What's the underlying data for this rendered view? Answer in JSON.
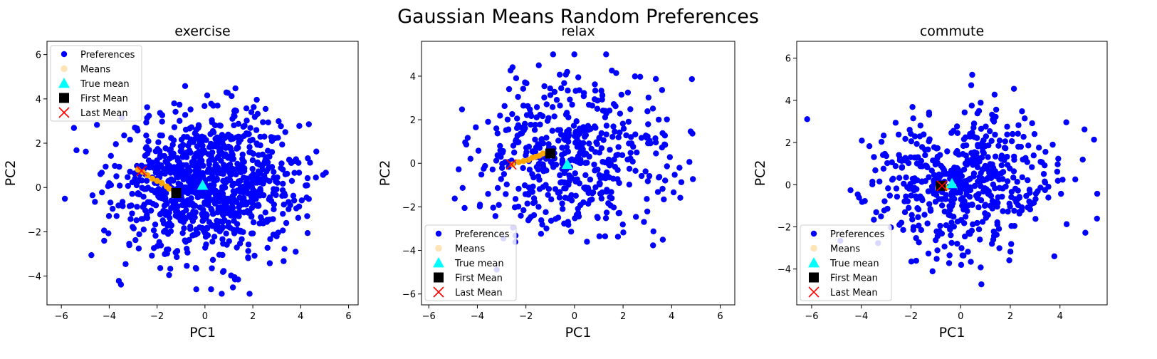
{
  "figure": {
    "title": "Gaussian Means Random Preferences"
  },
  "legend_labels": [
    "Preferences",
    "Means",
    "True mean",
    "First Mean",
    "Last Mean"
  ],
  "colors": {
    "preferences": "#0000ff",
    "means": "#ffa500",
    "means_legend": "#ffe4b5",
    "true_mean": "#00ffff",
    "first_mean": "#000000",
    "last_mean": "#ff0000"
  },
  "chart_data": [
    {
      "type": "scatter",
      "title": "exercise",
      "xlabel": "PC1",
      "ylabel": "PC2",
      "xlim": [
        -6.6,
        6.4
      ],
      "ylim": [
        -5.3,
        6.6
      ],
      "xticks": [
        -6,
        -4,
        -2,
        0,
        2,
        4,
        6
      ],
      "yticks": [
        -4,
        -2,
        0,
        2,
        4,
        6
      ],
      "legend_position": "upper-left",
      "grid": false,
      "preferences": {
        "n": 1000,
        "center": [
          0.2,
          0.2
        ],
        "spread": [
          1.9,
          1.6
        ],
        "xrange": [
          -6.1,
          6.0
        ],
        "yrange": [
          -4.8,
          6.1
        ]
      },
      "means_path": [
        [
          -2.8,
          0.8
        ],
        [
          -2.6,
          0.7
        ],
        [
          -2.4,
          0.55
        ],
        [
          -2.2,
          0.4
        ],
        [
          -2.0,
          0.3
        ],
        [
          -1.8,
          0.2
        ],
        [
          -1.6,
          0.05
        ],
        [
          -1.5,
          -0.05
        ]
      ],
      "true_mean": [
        -0.1,
        0.1
      ],
      "first_mean": [
        -1.2,
        -0.25
      ],
      "last_mean": [
        -2.65,
        0.75
      ]
    },
    {
      "type": "scatter",
      "title": "relax",
      "xlabel": "PC1",
      "ylabel": "PC2",
      "xlim": [
        -6.3,
        6.6
      ],
      "ylim": [
        -6.5,
        5.6
      ],
      "xticks": [
        -6,
        -4,
        -2,
        0,
        2,
        4,
        6
      ],
      "yticks": [
        -6,
        -4,
        -2,
        0,
        2,
        4
      ],
      "legend_position": "lower-left",
      "grid": false,
      "preferences": {
        "n": 500,
        "center": [
          0.0,
          0.2
        ],
        "spread": [
          2.0,
          1.9
        ],
        "xrange": [
          -5.7,
          5.9
        ],
        "yrange": [
          -5.9,
          5.0
        ]
      },
      "means_path": [
        [
          -2.55,
          -0.05
        ],
        [
          -2.3,
          0.05
        ],
        [
          -2.1,
          0.1
        ],
        [
          -1.9,
          0.15
        ],
        [
          -1.75,
          0.25
        ],
        [
          -1.6,
          0.3
        ],
        [
          -1.45,
          0.35
        ],
        [
          -1.3,
          0.45
        ]
      ],
      "true_mean": [
        -0.3,
        -0.05
      ],
      "first_mean": [
        -1.0,
        0.45
      ],
      "last_mean": [
        -2.6,
        -0.05
      ]
    },
    {
      "type": "scatter",
      "title": "commute",
      "xlabel": "PC1",
      "ylabel": "PC2",
      "xlim": [
        -6.6,
        5.9
      ],
      "ylim": [
        -5.7,
        6.8
      ],
      "xticks": [
        -6,
        -4,
        -2,
        0,
        2,
        4
      ],
      "yticks": [
        -4,
        -2,
        0,
        2,
        4,
        6
      ],
      "legend_position": "lower-left",
      "grid": false,
      "preferences": {
        "n": 550,
        "center": [
          0.0,
          0.1
        ],
        "spread": [
          1.9,
          1.7
        ],
        "xrange": [
          -6.2,
          5.5
        ],
        "yrange": [
          -5.2,
          6.2
        ]
      },
      "means_path": [
        [
          -0.9,
          -0.1
        ],
        [
          -0.8,
          -0.05
        ],
        [
          -0.7,
          0.0
        ],
        [
          -0.65,
          -0.1
        ],
        [
          -0.6,
          -0.15
        ]
      ],
      "true_mean": [
        -0.35,
        0.05
      ],
      "first_mean": [
        -0.8,
        -0.05
      ],
      "last_mean": [
        -0.75,
        -0.05
      ]
    }
  ]
}
